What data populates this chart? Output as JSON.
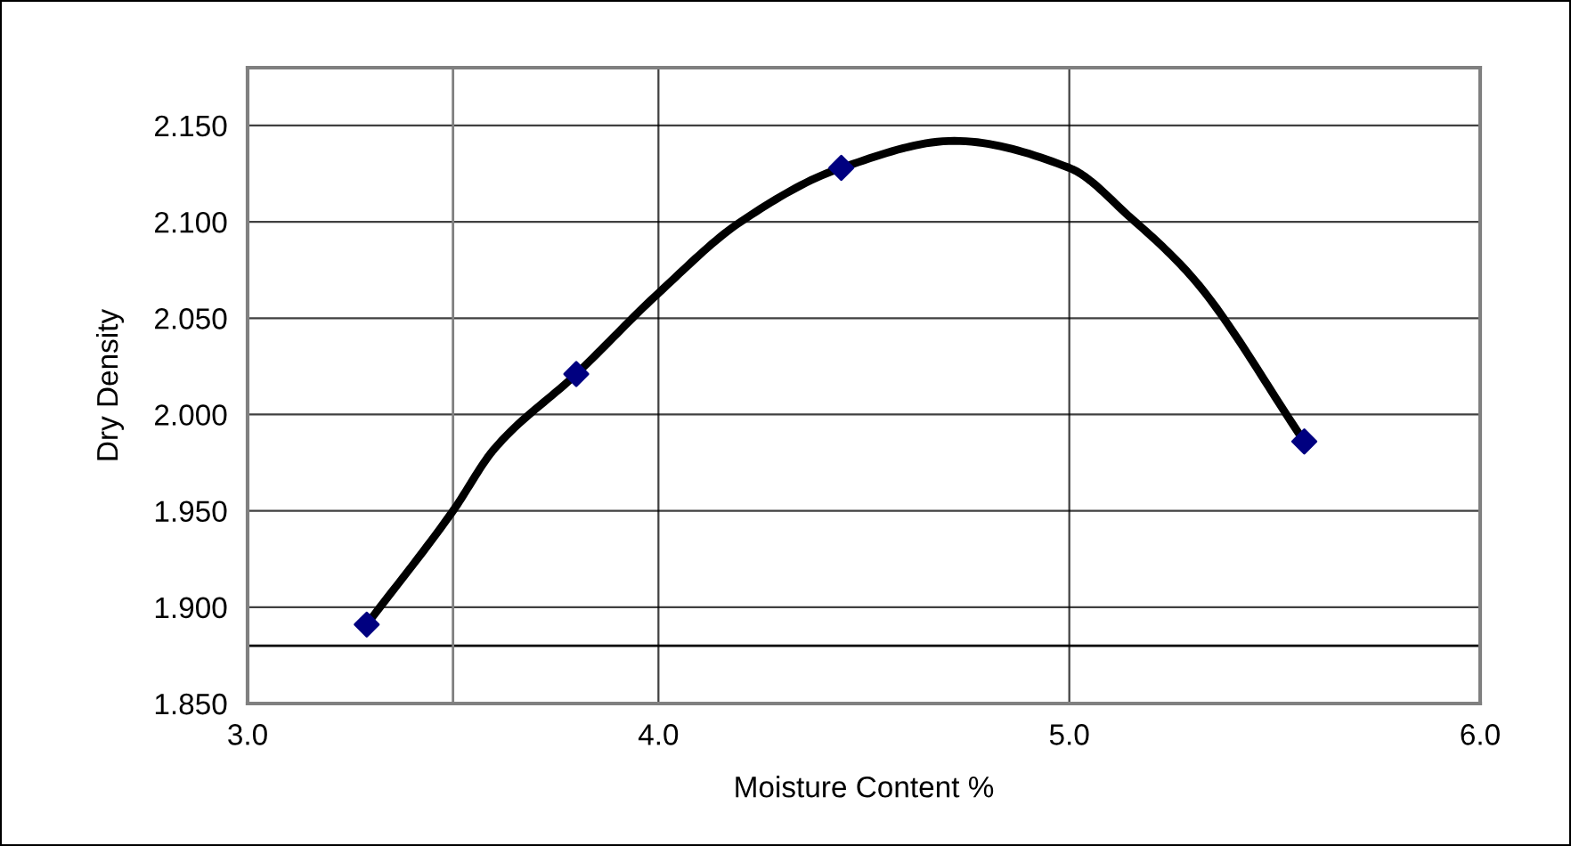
{
  "chart_data": {
    "type": "scatter",
    "xlabel": "Moisture Content %",
    "ylabel": "Dry Density",
    "xlim": [
      3.0,
      6.0
    ],
    "xticks": [
      {
        "value": 3.0,
        "label": "3.0"
      },
      {
        "value": 4.0,
        "label": "4.0"
      },
      {
        "value": 5.0,
        "label": "5.0"
      },
      {
        "value": 6.0,
        "label": "6.0"
      }
    ],
    "ylim": [
      1.85,
      2.18
    ],
    "yticks": [
      {
        "value": 1.85,
        "label": "1.850"
      },
      {
        "value": 1.9,
        "label": "1.900"
      },
      {
        "value": 1.95,
        "label": "1.950"
      },
      {
        "value": 2.0,
        "label": "2.000"
      },
      {
        "value": 2.05,
        "label": "2.050"
      },
      {
        "value": 2.1,
        "label": "2.100"
      },
      {
        "value": 2.15,
        "label": "2.150"
      }
    ],
    "grid": true,
    "legend": false,
    "marker": "diamond",
    "ref_lines": [
      {
        "axis": "y",
        "value": 1.88,
        "color": "#000000"
      },
      {
        "axis": "x",
        "value": 3.5,
        "color": "#808080"
      }
    ],
    "series": [
      {
        "color": "#000080",
        "x": [
          3.29,
          3.8,
          4.445,
          5.572
        ],
        "values": [
          1.891,
          2.021,
          2.128,
          1.986
        ]
      },
      {
        "type": "line",
        "color": "#000000",
        "marker": "none",
        "line_style": "solid",
        "x": [
          3.29,
          3.5,
          3.6,
          3.8,
          4.0,
          4.2,
          4.445,
          4.72,
          5.0,
          5.15,
          5.3,
          5.572
        ],
        "values": [
          1.891,
          1.95,
          1.982,
          2.021,
          2.063,
          2.1,
          2.128,
          2.142,
          2.128,
          2.102,
          2.071,
          1.986
        ]
      }
    ]
  }
}
